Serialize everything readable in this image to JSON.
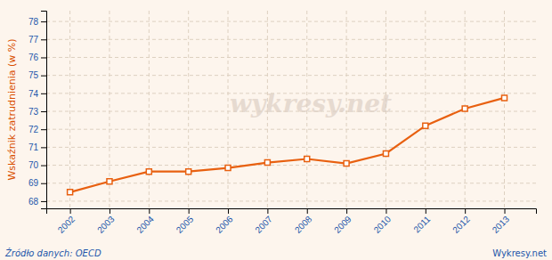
{
  "chart_data": {
    "type": "line",
    "x": [
      2002,
      2003,
      2004,
      2005,
      2006,
      2007,
      2008,
      2009,
      2010,
      2011,
      2012,
      2013
    ],
    "values": [
      68.5,
      69.1,
      69.65,
      69.65,
      69.85,
      70.15,
      70.35,
      70.1,
      70.65,
      72.2,
      73.15,
      73.75
    ],
    "color": "#e86010",
    "marker": "square",
    "ylabel": "Wskaźnik zatrudnienia (w %)",
    "xlim": [
      2001.4,
      2013.8
    ],
    "xticks": [
      2002,
      2003,
      2004,
      2005,
      2006,
      2007,
      2008,
      2009,
      2010,
      2011,
      2012,
      2013
    ],
    "ylim": [
      67.6,
      78.6
    ],
    "yticks": [
      68,
      69,
      70,
      71,
      72,
      73,
      74,
      75,
      76,
      77,
      78
    ],
    "grid": true,
    "annotations": [
      "wykresy.net",
      "Źródło danych:  OECD",
      "Wykresy.net"
    ]
  }
}
